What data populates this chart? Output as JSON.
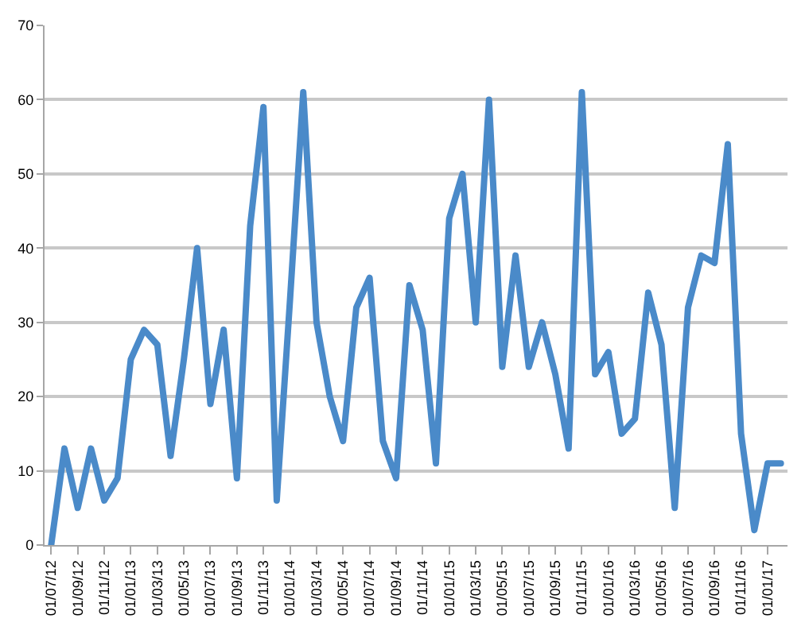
{
  "chart_data": {
    "type": "line",
    "categories": [
      "01/07/12",
      null,
      "01/09/12",
      null,
      "01/11/12",
      null,
      "01/01/13",
      null,
      "01/03/13",
      null,
      "01/05/13",
      null,
      "01/07/13",
      null,
      "01/09/13",
      null,
      "01/11/13",
      null,
      "01/01/14",
      null,
      "01/03/14",
      null,
      "01/05/14",
      null,
      "01/07/14",
      null,
      "01/09/14",
      null,
      "01/11/14",
      null,
      "01/01/15",
      null,
      "01/03/15",
      null,
      "01/05/15",
      null,
      "01/07/15",
      null,
      "01/09/15",
      null,
      "01/11/15",
      null,
      "01/01/16",
      null,
      "01/03/16",
      null,
      "01/05/16",
      null,
      "01/07/16",
      null,
      "01/09/16",
      null,
      "01/11/16",
      null,
      "01/01/17",
      null
    ],
    "series": [
      {
        "color": "#4a8ac9",
        "values": [
          0,
          13,
          5,
          13,
          6,
          9,
          25,
          29,
          27,
          12,
          25,
          40,
          19,
          29,
          9,
          43,
          59,
          6,
          33,
          61,
          30,
          20,
          14,
          32,
          36,
          14,
          9,
          35,
          29,
          11,
          44,
          50,
          30,
          60,
          24,
          39,
          24,
          30,
          23,
          13,
          61,
          23,
          26,
          15,
          17,
          34,
          27,
          5,
          32,
          39,
          38,
          54,
          15,
          2,
          11,
          11
        ]
      }
    ],
    "ylim": [
      0,
      70
    ],
    "yticks": [
      0,
      10,
      20,
      30,
      40,
      50,
      60,
      70
    ],
    "grid": "y",
    "marker": "none",
    "line_style": "solid"
  }
}
